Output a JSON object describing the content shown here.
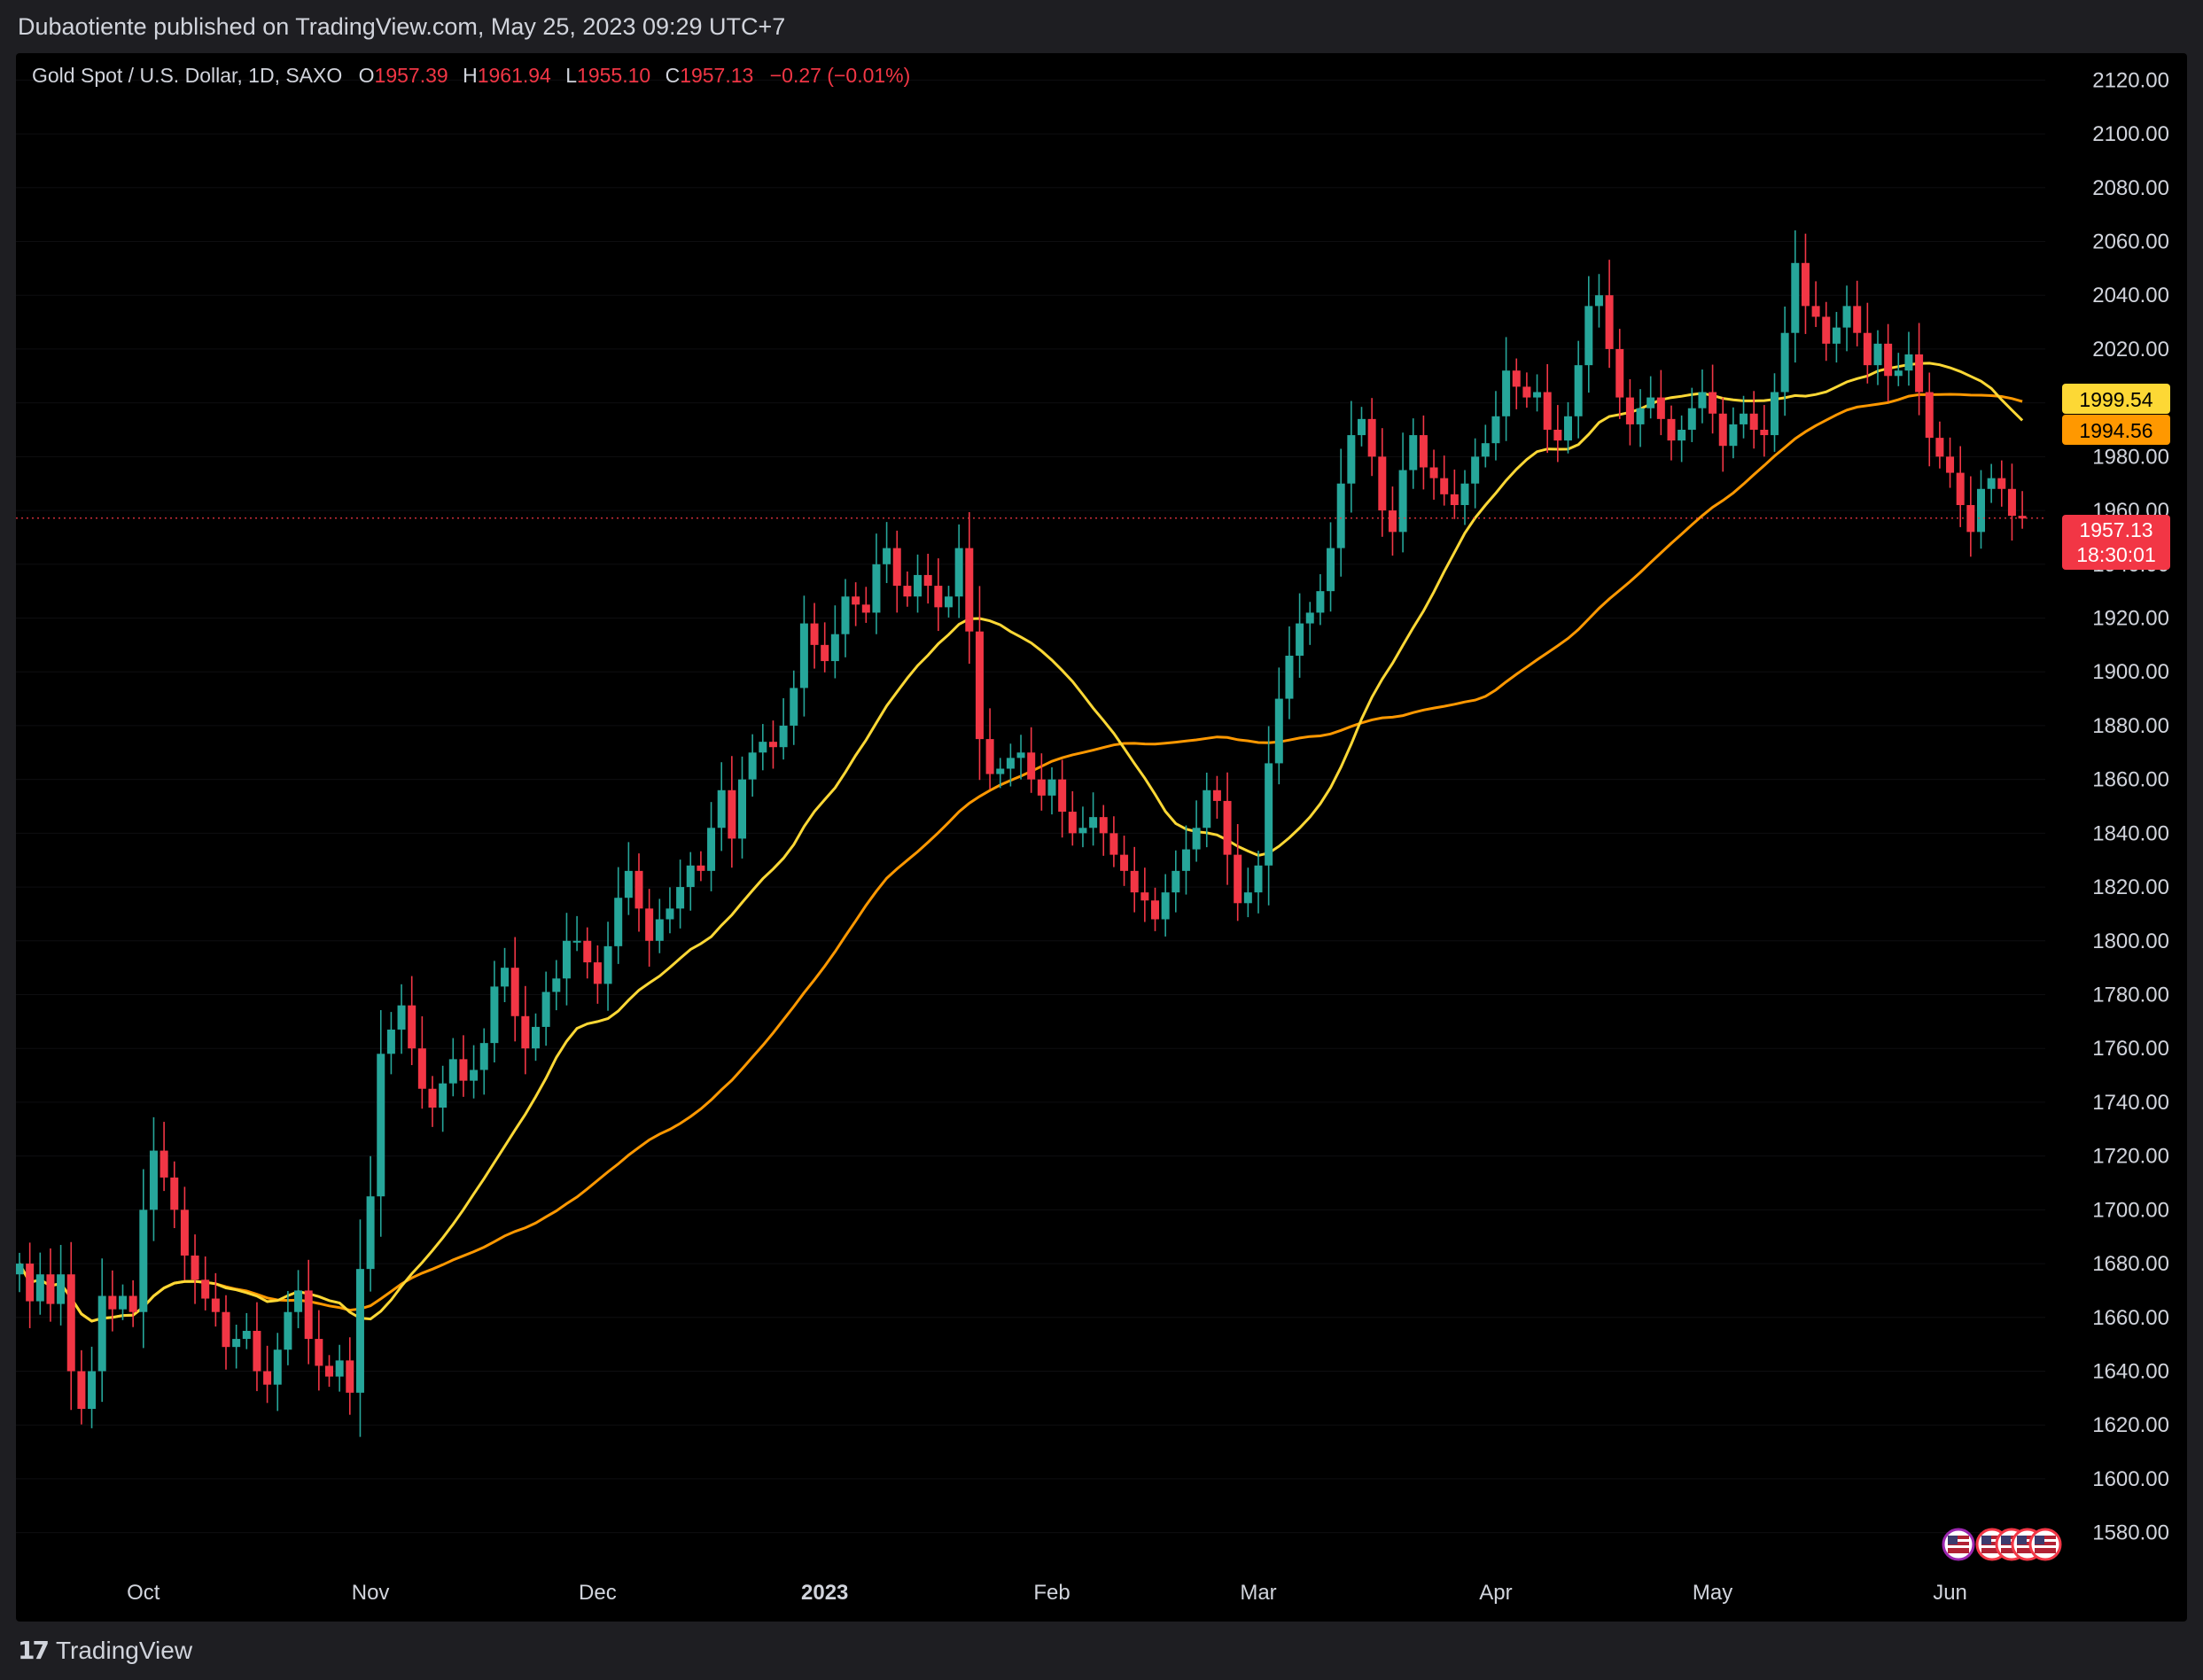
{
  "header": {
    "published_text": "Dubaotiente published on TradingView.com, May 25, 2023 09:29 UTC+7"
  },
  "legend": {
    "symbol": "Gold Spot / U.S. Dollar, 1D, SAXO",
    "open_label": "O",
    "open": "1957.39",
    "high_label": "H",
    "high": "1961.94",
    "low_label": "L",
    "low": "1955.10",
    "close_label": "C",
    "close": "1957.13",
    "change": "−0.27 (−0.01%)"
  },
  "price_tags": {
    "ma_fast": "1999.54",
    "ma_slow": "1994.56",
    "last": "1957.13",
    "countdown": "18:30:01"
  },
  "footer": {
    "brand": "TradingView",
    "logo_icon": "tradingview-logo-icon"
  },
  "events_icon": "us-flag-event-icons",
  "colors": {
    "up": "#26a69a",
    "down": "#f23645",
    "ma_fast": "#fdd835",
    "ma_slow": "#ff9800",
    "text": "#d1d4dc",
    "background": "#000000"
  },
  "chart_data": {
    "type": "candlestick",
    "title": "",
    "xlabel": "",
    "ylabel": "",
    "ylim": [
      1570,
      2130
    ],
    "y_ticks": [
      "2120.00",
      "2100.00",
      "2080.00",
      "2060.00",
      "2040.00",
      "2020.00",
      "2000.00",
      "1980.00",
      "1960.00",
      "1940.00",
      "1920.00",
      "1900.00",
      "1880.00",
      "1860.00",
      "1840.00",
      "1820.00",
      "1800.00",
      "1780.00",
      "1760.00",
      "1740.00",
      "1720.00",
      "1700.00",
      "1680.00",
      "1660.00",
      "1640.00",
      "1620.00",
      "1600.00",
      "1580.00"
    ],
    "x_ticks": [
      {
        "label": "Oct",
        "bar": 12,
        "bold": false
      },
      {
        "label": "Nov",
        "bar": 34,
        "bold": false
      },
      {
        "label": "Dec",
        "bar": 56,
        "bold": false
      },
      {
        "label": "2023",
        "bar": 78,
        "bold": true
      },
      {
        "label": "Feb",
        "bar": 100,
        "bold": false
      },
      {
        "label": "Mar",
        "bar": 120,
        "bold": false
      },
      {
        "label": "Apr",
        "bar": 143,
        "bold": false
      },
      {
        "label": "May",
        "bar": 164,
        "bold": false
      },
      {
        "label": "Jun",
        "bar": 187,
        "bold": false
      }
    ],
    "close": [
      1680,
      1666,
      1676,
      1665,
      1676,
      1640,
      1626,
      1640,
      1668,
      1663,
      1668,
      1662,
      1700,
      1722,
      1712,
      1700,
      1683,
      1674,
      1667,
      1662,
      1649,
      1652,
      1655,
      1640,
      1635,
      1648,
      1662,
      1670,
      1652,
      1642,
      1638,
      1644,
      1632,
      1678,
      1705,
      1758,
      1767,
      1776,
      1760,
      1745,
      1738,
      1747,
      1756,
      1748,
      1752,
      1762,
      1783,
      1790,
      1772,
      1760,
      1768,
      1781,
      1786,
      1800,
      1800,
      1792,
      1784,
      1798,
      1816,
      1826,
      1812,
      1800,
      1808,
      1812,
      1820,
      1828,
      1826,
      1842,
      1856,
      1838,
      1860,
      1870,
      1874,
      1872,
      1880,
      1894,
      1918,
      1910,
      1904,
      1914,
      1928,
      1925,
      1922,
      1940,
      1946,
      1932,
      1928,
      1936,
      1932,
      1924,
      1928,
      1946,
      1915,
      1875,
      1862,
      1864,
      1868,
      1870,
      1860,
      1854,
      1860,
      1848,
      1840,
      1842,
      1846,
      1840,
      1832,
      1826,
      1818,
      1815,
      1808,
      1818,
      1826,
      1834,
      1842,
      1856,
      1852,
      1832,
      1814,
      1818,
      1828,
      1866,
      1890,
      1906,
      1918,
      1922,
      1930,
      1946,
      1970,
      1988,
      1994,
      1980,
      1960,
      1952,
      1975,
      1988,
      1976,
      1972,
      1966,
      1962,
      1970,
      1980,
      1985,
      1995,
      2012,
      2006,
      2002,
      2004,
      1990,
      1986,
      1995,
      2014,
      2036,
      2040,
      2020,
      2002,
      1992,
      1998,
      2002,
      1994,
      1986,
      1990,
      1998,
      2004,
      1996,
      1984,
      1992,
      1996,
      1990,
      1988,
      2004,
      2026,
      2052,
      2036,
      2032,
      2022,
      2028,
      2036,
      2026,
      2014,
      2022,
      2010,
      2012,
      2018,
      2004,
      1987,
      1980,
      1974,
      1962,
      1952,
      1968,
      1972,
      1968,
      1958,
      1957
    ],
    "ma_fast_label": "1999.54",
    "ma_slow_label": "1994.56",
    "last_price": 1957.13
  }
}
